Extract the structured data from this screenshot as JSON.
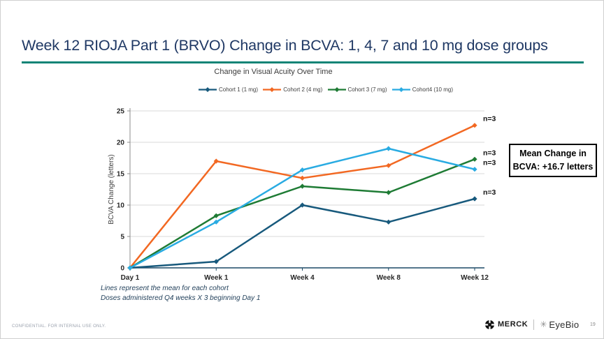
{
  "slide": {
    "title": "Week 12 RIOJA Part 1 (BRVO) Change in BCVA: 1, 4, 7 and 10 mg dose groups",
    "footnotes": [
      "Lines represent the mean for each cohort",
      "Doses administered Q4 weeks X 3 beginning Day 1"
    ],
    "annotation": {
      "line1": "Mean Change in",
      "line2": "BCVA: +16.7 letters"
    },
    "footer": {
      "confidential": "CONFIDENTIAL. FOR INTERNAL USE ONLY.",
      "merck_label": "MERCK",
      "eyebio_label": "EyeBio",
      "page_number": "19"
    }
  },
  "colors": {
    "title_navy": "#1F3864",
    "accent_teal": "#0E8476",
    "grid": "#D9D9D9",
    "y_axis": "#8C8C8C",
    "x_axis": "#1C4966"
  },
  "chart_data": {
    "type": "line",
    "title": "Change in Visual Acuity Over Time",
    "x": [
      "Day 1",
      "Week 1",
      "Week 4",
      "Week 8",
      "Week 12"
    ],
    "xlabel": "",
    "ylabel": "BCVA Change (letters)",
    "ylim": [
      0,
      25
    ],
    "yticks": [
      0,
      5,
      10,
      15,
      20,
      25
    ],
    "grid": true,
    "legend_position": "top",
    "series": [
      {
        "name": "Cohort 1 (1 mg)",
        "color": "#17597C",
        "values": [
          0,
          1,
          10,
          7.3,
          11
        ],
        "end_label": "n=3"
      },
      {
        "name": "Cohort 2 (4 mg)",
        "color": "#F26822",
        "values": [
          0,
          17,
          14.3,
          16.3,
          22.7
        ],
        "end_label": "n=3"
      },
      {
        "name": "Cohort 3 (7 mg)",
        "color": "#1E7B34",
        "values": [
          0,
          8.3,
          13,
          12,
          17.3
        ],
        "end_label": "n=3"
      },
      {
        "name": "Cohort4 (10 mg)",
        "color": "#29ABE2",
        "values": [
          0,
          7.3,
          15.6,
          19,
          15.7
        ],
        "end_label": "n=3"
      }
    ]
  }
}
